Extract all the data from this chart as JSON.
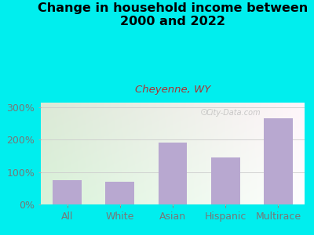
{
  "title": "Change in household income between\n2000 and 2022",
  "subtitle": "Cheyenne, WY",
  "categories": [
    "All",
    "White",
    "Asian",
    "Hispanic",
    "Multirace"
  ],
  "values": [
    75,
    70,
    190,
    145,
    265
  ],
  "bar_color": "#b8a8d0",
  "title_fontsize": 11.5,
  "subtitle_fontsize": 9.5,
  "subtitle_color": "#aa3333",
  "title_color": "#000000",
  "outer_bg": "#00eeee",
  "inner_bg_left": "#d4eac8",
  "inner_bg_right": "#f5fff5",
  "yticks": [
    0,
    100,
    200,
    300
  ],
  "ytick_labels": [
    "0%",
    "100%",
    "200%",
    "300%"
  ],
  "ylim": [
    0,
    315
  ],
  "tick_color": "#777777",
  "watermark": "City-Data.com",
  "axis_label_fontsize": 9,
  "grid_color": "#cccccc"
}
